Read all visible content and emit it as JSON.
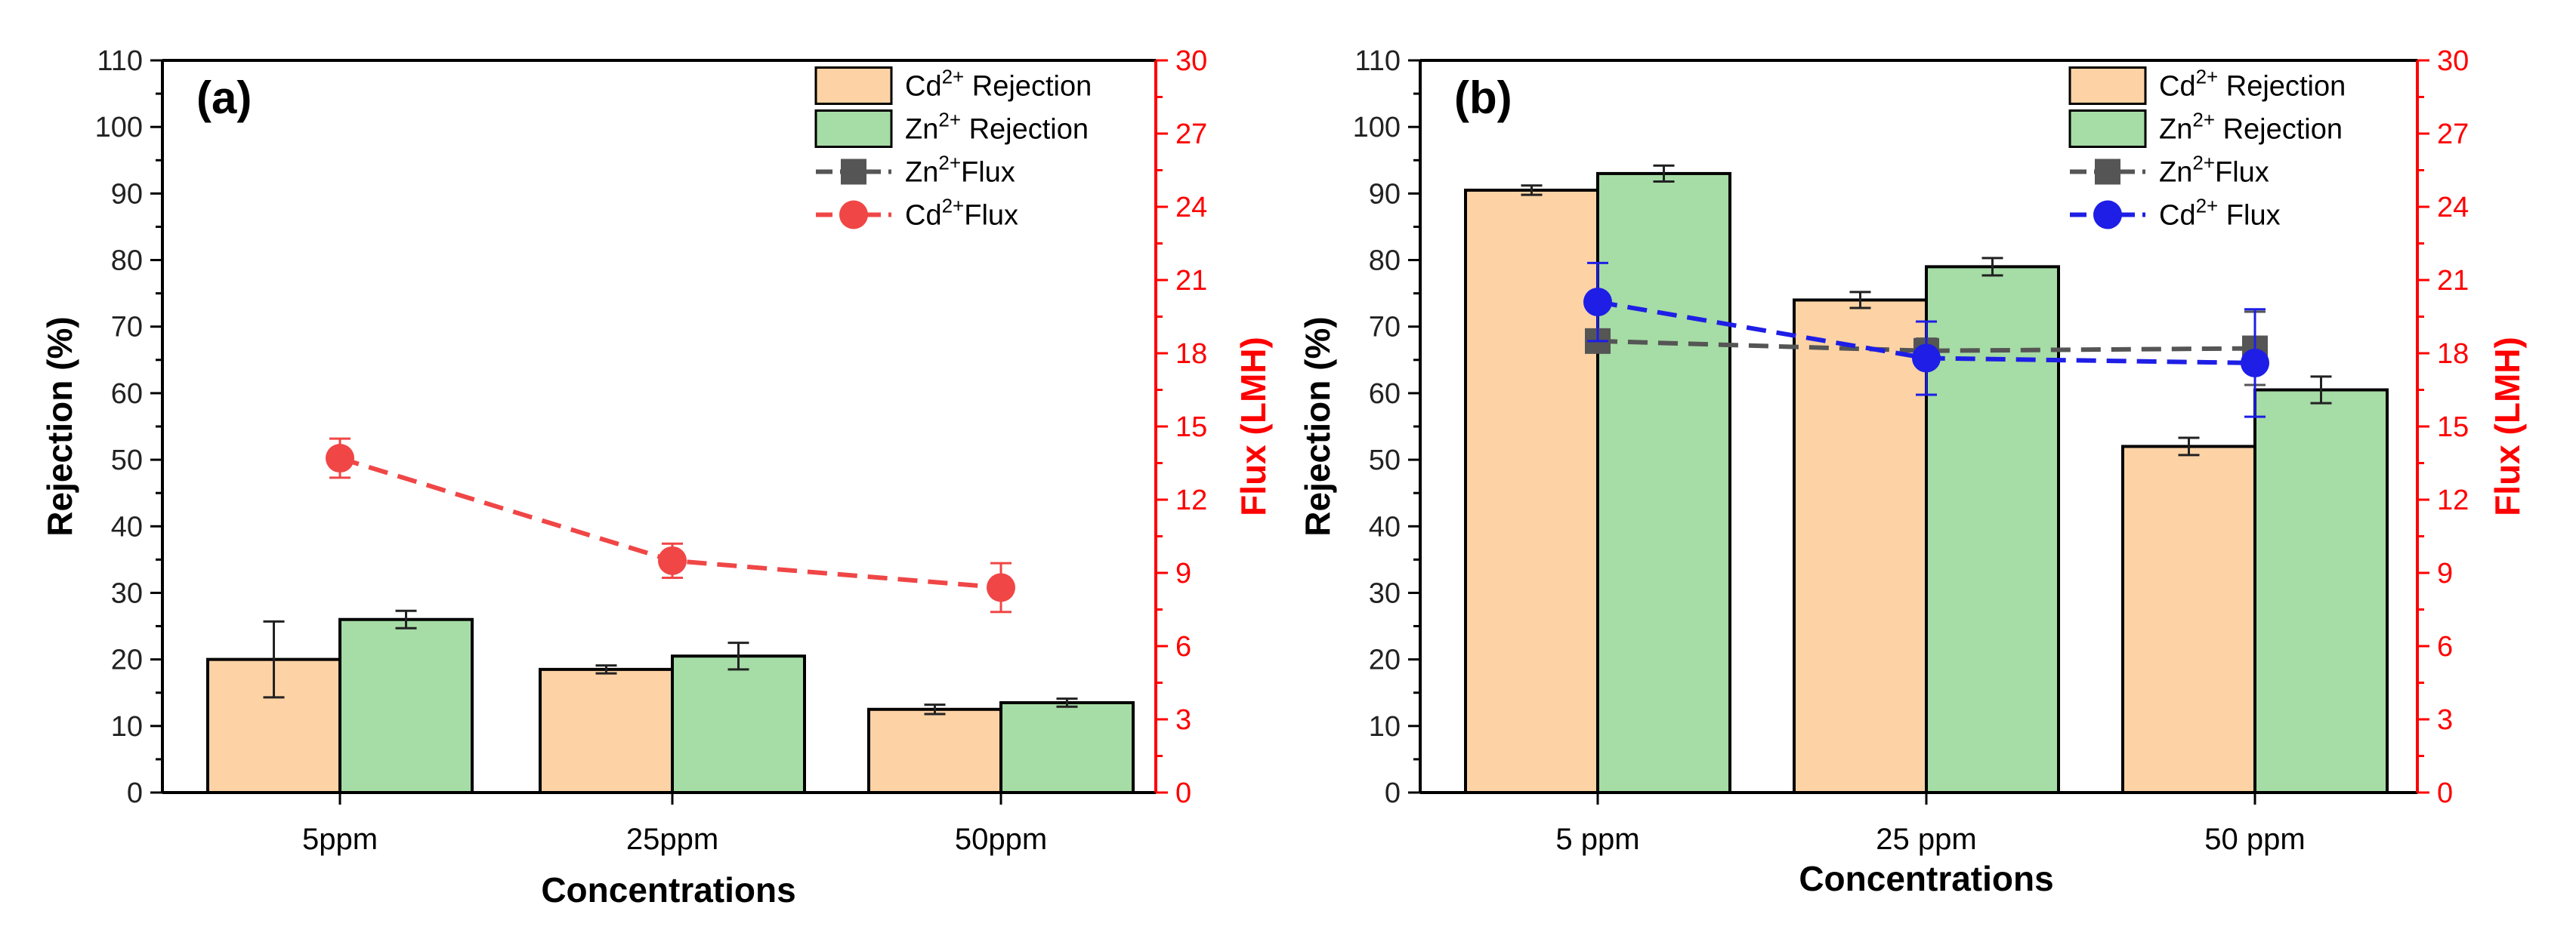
{
  "colors": {
    "cd_bar": "#fdd3a5",
    "zn_bar": "#a6dca5",
    "zn_flux": "#555555",
    "cd_flux_a": "#f04646",
    "cd_flux_b": "#1e1ee6",
    "right_axis": "#ff0000",
    "error_bar": "#222222"
  },
  "chart_data": [
    {
      "type": "bar",
      "panel_label": "(a)",
      "title": "",
      "xlabel": "Concentrations",
      "ylabel": "Rejection (%)",
      "y2label": "Flux (LMH)",
      "categories": [
        "5ppm",
        "25ppm",
        "50ppm"
      ],
      "ylim": [
        0,
        110
      ],
      "yticks": [
        0,
        10,
        20,
        30,
        40,
        50,
        60,
        70,
        80,
        90,
        100,
        110
      ],
      "y2lim": [
        0,
        30
      ],
      "y2ticks": [
        0,
        3,
        6,
        9,
        12,
        15,
        18,
        21,
        24,
        27,
        30
      ],
      "grid": false,
      "legend_position": "top-right",
      "bar_series": [
        {
          "name_base": "Cd",
          "name_sup": "2+",
          "name_suffix": " Rejection",
          "values": [
            20,
            18.5,
            12.5
          ],
          "errors": [
            5.7,
            0.6,
            0.7
          ],
          "color_key": "cd_bar"
        },
        {
          "name_base": "Zn",
          "name_sup": "2+",
          "name_suffix": " Rejection",
          "values": [
            26,
            20.5,
            13.5
          ],
          "errors": [
            1.3,
            2.0,
            0.6
          ],
          "color_key": "zn_bar"
        }
      ],
      "line_series": [
        {
          "name_base": "Zn",
          "name_sup": "2+",
          "name_suffix": "Flux",
          "values": [
            13.5,
            9.4,
            8.3
          ],
          "errors": [
            0.8,
            0.7,
            1.0
          ],
          "marker": "square",
          "color_key": "zn_flux",
          "visible": false
        },
        {
          "name_base": "Cd",
          "name_sup": "2+",
          "name_suffix": "Flux",
          "values": [
            13.7,
            9.5,
            8.4
          ],
          "errors": [
            0.8,
            0.7,
            1.0
          ],
          "marker": "circle",
          "color_key": "cd_flux_a",
          "visible": true
        }
      ]
    },
    {
      "type": "bar",
      "panel_label": "(b)",
      "title": "",
      "xlabel": "Concentrations",
      "ylabel": "Rejection (%)",
      "y2label": "Flux (LMH)",
      "categories": [
        "5 ppm",
        "25 ppm",
        "50 ppm"
      ],
      "ylim": [
        0,
        110
      ],
      "yticks": [
        0,
        10,
        20,
        30,
        40,
        50,
        60,
        70,
        80,
        90,
        100,
        110
      ],
      "y2lim": [
        0,
        30
      ],
      "y2ticks": [
        0,
        3,
        6,
        9,
        12,
        15,
        18,
        21,
        24,
        27,
        30
      ],
      "grid": false,
      "legend_position": "top-right",
      "bar_series": [
        {
          "name_base": "Cd",
          "name_sup": "2+",
          "name_suffix": " Rejection",
          "values": [
            90.5,
            74,
            52
          ],
          "errors": [
            0.7,
            1.2,
            1.3
          ],
          "color_key": "cd_bar"
        },
        {
          "name_base": "Zn",
          "name_sup": "2+",
          "name_suffix": " Rejection",
          "values": [
            93,
            79,
            60.5
          ],
          "errors": [
            1.2,
            1.3,
            2.0
          ],
          "color_key": "zn_bar"
        }
      ],
      "line_series": [
        {
          "name_base": "Zn",
          "name_sup": "2+",
          "name_suffix": "Flux",
          "values": [
            18.5,
            18.1,
            18.2
          ],
          "errors": [
            0.4,
            0.5,
            1.5
          ],
          "marker": "square",
          "color_key": "zn_flux",
          "visible": true
        },
        {
          "name_base": "Cd",
          "name_sup": "2+",
          "name_suffix": " Flux",
          "values": [
            20.1,
            17.8,
            17.6
          ],
          "errors": [
            1.6,
            1.5,
            2.2
          ],
          "marker": "circle",
          "color_key": "cd_flux_b",
          "visible": true
        }
      ]
    }
  ]
}
